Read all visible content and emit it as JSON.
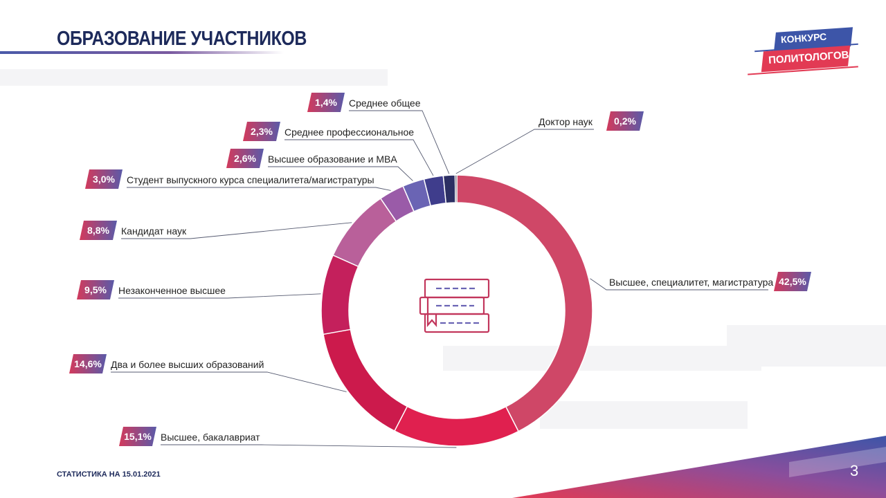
{
  "page": {
    "title": "ОБРАЗОВАНИЕ УЧАСТНИКОВ",
    "footer": "СТАТИСТИКА НА 15.01.2021",
    "page_number": "3",
    "logo": {
      "line1": "КОНКУРС",
      "line2": "ПОЛИТОЛОГОВ"
    },
    "colors": {
      "title": "#1d2a5b",
      "brand_red": "#e23a54",
      "brand_blue": "#3d55a8"
    },
    "center_icon": "books-icon"
  },
  "chart_data": {
    "type": "pie",
    "donut": true,
    "slices": [
      {
        "label": "Высшее, специалитет, магистратура",
        "value_text": "42,5%",
        "value": 42.5,
        "color": "#cf4767"
      },
      {
        "label": "Высшее, бакалавриат",
        "value_text": "15,1%",
        "value": 15.1,
        "color": "#e0204f"
      },
      {
        "label": "Два и более высших образований",
        "value_text": "14,6%",
        "value": 14.6,
        "color": "#cc1a4c"
      },
      {
        "label": "Незаконченное высшее",
        "value_text": "9,5%",
        "value": 9.5,
        "color": "#c4205c"
      },
      {
        "label": "Кандидат наук",
        "value_text": "8,8%",
        "value": 8.8,
        "color": "#b9609a"
      },
      {
        "label": "Студент выпускного курса специалитета/магистратуры",
        "value_text": "3,0%",
        "value": 3.0,
        "color": "#9a5ba8"
      },
      {
        "label": "Высшее образование и MBA",
        "value_text": "2,6%",
        "value": 2.6,
        "color": "#6a64b4"
      },
      {
        "label": "Среднее профессиональное",
        "value_text": "2,3%",
        "value": 2.3,
        "color": "#3f3d8c"
      },
      {
        "label": "Среднее общее",
        "value_text": "1,4%",
        "value": 1.4,
        "color": "#2c2f63"
      },
      {
        "label": "Доктор наук",
        "value_text": "0,2%",
        "value": 0.2,
        "color": "#1b1d33"
      }
    ]
  }
}
